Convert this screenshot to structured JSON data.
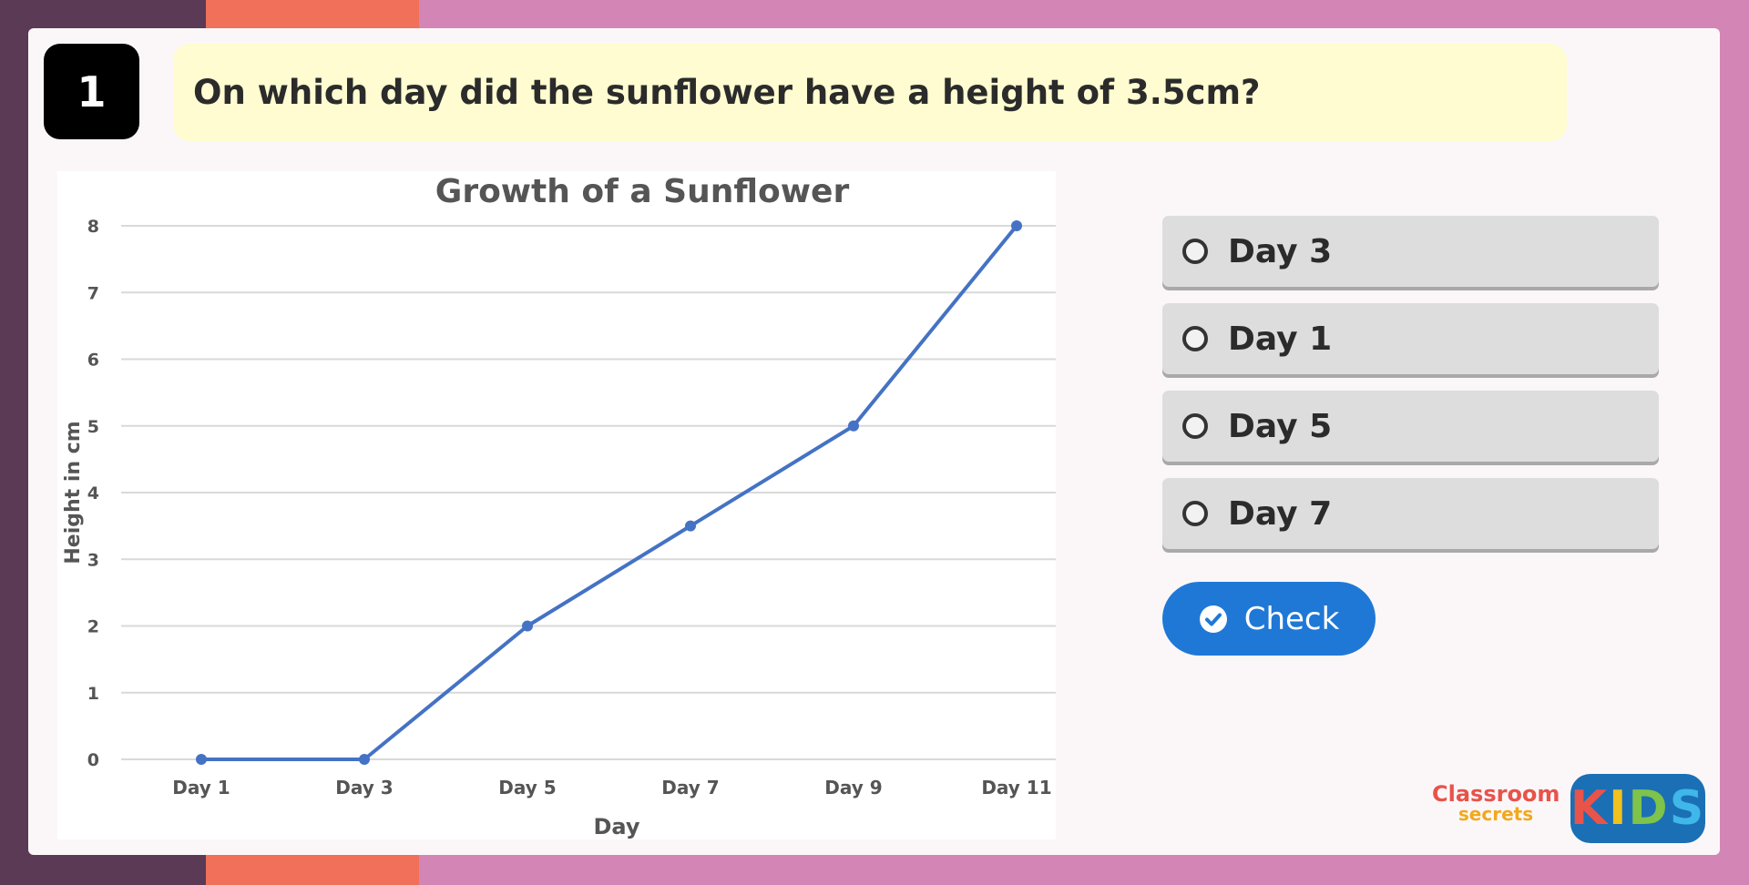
{
  "question": {
    "number": "1",
    "text": "On which day did the sunflower have a height of 3.5cm?"
  },
  "options": [
    {
      "label": "Day 3"
    },
    {
      "label": "Day 1"
    },
    {
      "label": "Day 5"
    },
    {
      "label": "Day 7"
    }
  ],
  "check_button": {
    "label": "Check"
  },
  "logos": {
    "classroom_line1": "Classroom",
    "classroom_line2": "secrets",
    "kids": [
      "K",
      "I",
      "D",
      "S"
    ]
  },
  "colors": {
    "accent": "#1f78d6",
    "line": "#4472c4",
    "question_bg": "#fefcd0"
  },
  "chart_data": {
    "type": "line",
    "title": "Growth of a Sunflower",
    "xlabel": "Day",
    "ylabel": "Height in cm",
    "categories": [
      "Day 1",
      "Day 3",
      "Day 5",
      "Day 7",
      "Day 9",
      "Day 11"
    ],
    "values": [
      0,
      0,
      2,
      3.5,
      5,
      8
    ],
    "ylim": [
      0,
      8
    ],
    "yticks": [
      "0",
      "1",
      "2",
      "3",
      "4",
      "5",
      "6",
      "7",
      "8"
    ],
    "grid": true,
    "legend": "none"
  }
}
